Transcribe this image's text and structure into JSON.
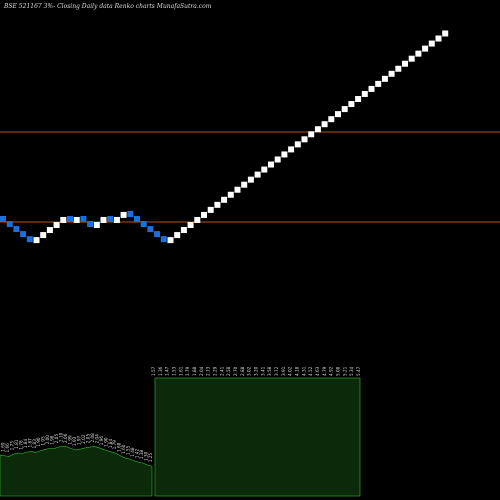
{
  "chart_data": {
    "type": "renko",
    "title": "BSE 521167 3%-  Closing Daily data  Renko  charts MunafaSutra.com",
    "colors": {
      "background": "#000000",
      "up_brick": "#ffffff",
      "down_brick": "#1e6fd9",
      "level_line": "#b4541a",
      "volume_fill": "#0a2a0a",
      "volume_line": "#33bb33"
    },
    "levels": [
      6.92,
      5.67
    ],
    "bricks": [
      {
        "dir": "down",
        "close": 5.67
      },
      {
        "dir": "down",
        "close": 5.6
      },
      {
        "dir": "down",
        "close": 5.53
      },
      {
        "dir": "down",
        "close": 5.46
      },
      {
        "dir": "down",
        "close": 5.39
      },
      {
        "dir": "up",
        "close": 5.46
      },
      {
        "dir": "up",
        "close": 5.53
      },
      {
        "dir": "up",
        "close": 5.6
      },
      {
        "dir": "up",
        "close": 5.67
      },
      {
        "dir": "up",
        "close": 5.74
      },
      {
        "dir": "down",
        "close": 5.67
      },
      {
        "dir": "up",
        "close": 5.74
      },
      {
        "dir": "down",
        "close": 5.67
      },
      {
        "dir": "down",
        "close": 5.6
      },
      {
        "dir": "up",
        "close": 5.67
      },
      {
        "dir": "up",
        "close": 5.74
      },
      {
        "dir": "down",
        "close": 5.67
      },
      {
        "dir": "up",
        "close": 5.74
      },
      {
        "dir": "up",
        "close": 5.81
      },
      {
        "dir": "down",
        "close": 5.74
      },
      {
        "dir": "down",
        "close": 5.67
      },
      {
        "dir": "down",
        "close": 5.6
      },
      {
        "dir": "down",
        "close": 5.53
      },
      {
        "dir": "down",
        "close": 5.46
      },
      {
        "dir": "down",
        "close": 5.39
      },
      {
        "dir": "up",
        "close": 5.46
      },
      {
        "dir": "up",
        "close": 5.53
      },
      {
        "dir": "up",
        "close": 5.6
      },
      {
        "dir": "up",
        "close": 5.67
      },
      {
        "dir": "up",
        "close": 5.74
      },
      {
        "dir": "up",
        "close": 5.81
      },
      {
        "dir": "up",
        "close": 5.88
      },
      {
        "dir": "up",
        "close": 5.95
      },
      {
        "dir": "up",
        "close": 6.02
      },
      {
        "dir": "up",
        "close": 6.09
      },
      {
        "dir": "up",
        "close": 6.16
      },
      {
        "dir": "up",
        "close": 6.23
      },
      {
        "dir": "up",
        "close": 6.3
      },
      {
        "dir": "up",
        "close": 6.37
      },
      {
        "dir": "up",
        "close": 6.44
      },
      {
        "dir": "up",
        "close": 6.51
      },
      {
        "dir": "up",
        "close": 6.58
      },
      {
        "dir": "up",
        "close": 6.65
      },
      {
        "dir": "up",
        "close": 6.72
      },
      {
        "dir": "up",
        "close": 6.79
      },
      {
        "dir": "up",
        "close": 6.86
      },
      {
        "dir": "up",
        "close": 6.93
      },
      {
        "dir": "up",
        "close": 7.0
      },
      {
        "dir": "up",
        "close": 7.07
      },
      {
        "dir": "up",
        "close": 7.14
      },
      {
        "dir": "up",
        "close": 7.21
      },
      {
        "dir": "up",
        "close": 7.28
      },
      {
        "dir": "up",
        "close": 7.35
      },
      {
        "dir": "up",
        "close": 7.42
      },
      {
        "dir": "up",
        "close": 7.49
      },
      {
        "dir": "up",
        "close": 7.56
      },
      {
        "dir": "up",
        "close": 7.63
      },
      {
        "dir": "up",
        "close": 7.7
      },
      {
        "dir": "up",
        "close": 7.77
      },
      {
        "dir": "up",
        "close": 7.84
      },
      {
        "dir": "up",
        "close": 7.91
      },
      {
        "dir": "up",
        "close": 7.98
      },
      {
        "dir": "up",
        "close": 8.05
      },
      {
        "dir": "up",
        "close": 8.12
      },
      {
        "dir": "up",
        "close": 8.19
      },
      {
        "dir": "up",
        "close": 8.26
      },
      {
        "dir": "up",
        "close": 8.33
      }
    ],
    "volume": {
      "values": [
        1.72,
        1.69,
        1.66,
        1.75,
        1.81,
        1.78,
        1.84,
        1.87,
        1.83,
        1.9,
        1.95,
        2.0,
        1.98,
        2.05,
        2.1,
        2.06,
        1.99,
        1.93,
        1.97,
        2.02,
        2.05,
        2.08,
        2.04,
        1.96,
        1.9,
        1.84,
        1.79,
        1.68,
        1.6,
        1.55,
        1.48,
        1.42,
        1.38,
        1.3,
        1.25
      ],
      "labels": [
        "1.72",
        "1.69",
        "1.66",
        "1.75",
        "1.81",
        "1.78",
        "1.84",
        "1.87",
        "1.83",
        "1.90",
        "1.95",
        "2.00",
        "1.98",
        "2.05",
        "2.10",
        "2.06",
        "1.99",
        "1.93",
        "1.97",
        "2.02",
        "2.05",
        "2.08",
        "2.04",
        "1.96",
        "1.90",
        "1.84",
        "1.79",
        "1.68",
        "1.60",
        "1.55",
        "1.48",
        "1.42",
        "1.38",
        "1.30",
        "1.25"
      ],
      "block_labels": [
        "1.57",
        "1.36",
        "1.47",
        "1.53",
        "1.61",
        "1.79",
        "1.88",
        "2.04",
        "2.13",
        "2.29",
        "2.41",
        "2.58",
        "2.70",
        "2.88",
        "3.02",
        "3.20",
        "3.41",
        "3.58",
        "3.72",
        "3.91",
        "4.02",
        "4.18",
        "4.31",
        "4.52",
        "4.63",
        "4.79",
        "4.92",
        "5.08",
        "5.21",
        "5.34",
        "5.47"
      ]
    }
  }
}
